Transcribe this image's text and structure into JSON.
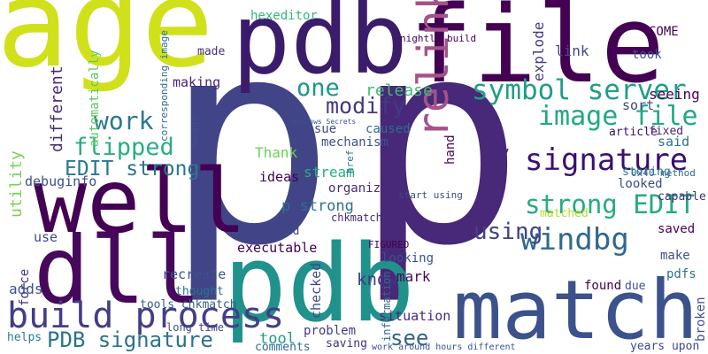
{
  "words": [
    "age",
    "p",
    "p",
    "file",
    "pdb",
    "pdb",
    "well",
    "dll",
    "match",
    "relink",
    "build process",
    "symbol server",
    "image file",
    "signature",
    "strong EDIT",
    "windbg",
    "using",
    "modify",
    "one",
    "work",
    "flipped",
    "EDIT strong",
    "PDB signature",
    "see",
    "release",
    "tool",
    "know",
    "hexeditor",
    "link",
    "COME",
    "took",
    "made",
    "making",
    "Thank",
    "ideas",
    "issue",
    "caused",
    "mechanism",
    "stream",
    "organize",
    "p strong",
    "chkmatch html",
    "generated",
    "executable",
    "recreate",
    "thought",
    "tools chkmatch",
    "long time",
    "comments",
    "saving",
    "problem",
    "situation",
    "looking",
    "mark",
    "FIGURED",
    "seeing",
    "sort",
    "article",
    "said",
    "way",
    "storing",
    "looked",
    "capable",
    "saved",
    "make",
    "pdfs",
    "found",
    "due",
    "matched",
    "fixed",
    "explode",
    "utility",
    "automatically",
    "different",
    "means",
    "checked",
    "information",
    "force",
    "hand",
    "broken",
    "href",
    "corresponding image",
    "adds",
    "use",
    "helps",
    "debuginfo",
    "nightly build",
    "work around hours different",
    "years upon",
    "0x40 method",
    "start using",
    "Windows Secrets"
  ]
}
